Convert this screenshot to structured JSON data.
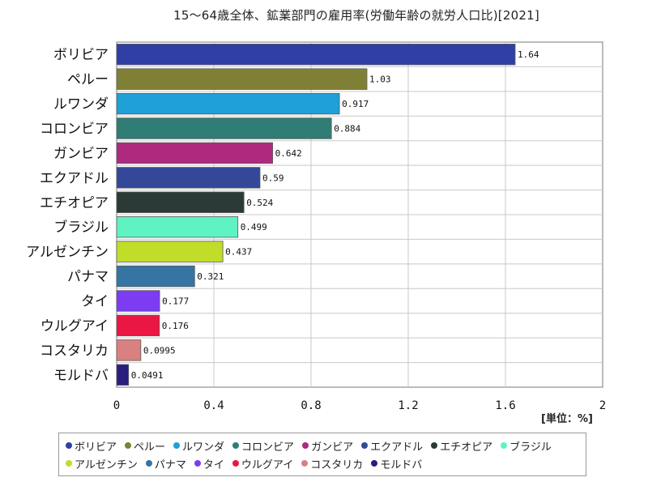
{
  "chart_data": {
    "type": "bar",
    "orientation": "horizontal",
    "title": "15～64歳全体、鉱業部門の雇用率(労働年齢の就労人口比)[2021]",
    "unit_label": "[単位：%]",
    "categories": [
      "ボリビア",
      "ペルー",
      "ルワンダ",
      "コロンビア",
      "ガンビア",
      "エクアドル",
      "エチオピア",
      "ブラジル",
      "アルゼンチン",
      "パナマ",
      "タイ",
      "ウルグアイ",
      "コスタリカ",
      "モルドバ"
    ],
    "values": [
      1.64,
      1.03,
      0.917,
      0.884,
      0.642,
      0.59,
      0.524,
      0.499,
      0.437,
      0.321,
      0.177,
      0.176,
      0.0995,
      0.0491
    ],
    "value_labels": [
      "1.64",
      "1.03",
      "0.917",
      "0.884",
      "0.642",
      "0.59",
      "0.524",
      "0.499",
      "0.437",
      "0.321",
      "0.177",
      "0.176",
      "0.0995",
      "0.0491"
    ],
    "colors": [
      "#2f3fa6",
      "#7f8036",
      "#1fa0d6",
      "#2f7d74",
      "#ad2a7e",
      "#34489a",
      "#2b3a36",
      "#5ff2c3",
      "#c2dc2a",
      "#3574a3",
      "#7b3cf2",
      "#ea1744",
      "#d98080",
      "#2a1d80"
    ],
    "xlim": [
      0,
      2
    ],
    "xticks": [
      "0",
      "0.4",
      "0.8",
      "1.2",
      "1.6",
      "2"
    ],
    "xtick_values": [
      0,
      0.4,
      0.8,
      1.2,
      1.6,
      2
    ],
    "grid": true,
    "legend_position": "bottom"
  }
}
